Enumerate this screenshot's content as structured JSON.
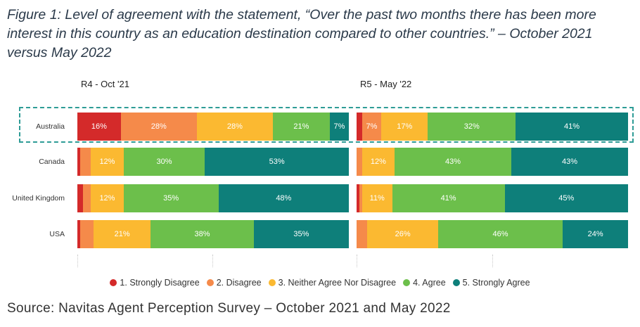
{
  "title": "Figure 1: Level of agreement with the statement, “Over the past two months there has been more interest in this country as an education destination compared to other countries.” – October 2021 versus May 2022",
  "source": "Source: Navitas Agent Perception Survey – October 2021 and May 2022",
  "chart_data": {
    "type": "bar",
    "orientation": "horizontal",
    "stacked": "100%",
    "categories": [
      "Australia",
      "Canada",
      "United Kingdom",
      "USA"
    ],
    "highlighted_category": "Australia",
    "panels": [
      {
        "title": "R4 - Oct '21",
        "series": [
          {
            "name": "1. Strongly Disagree",
            "values": [
              16,
              1,
              2,
              1
            ]
          },
          {
            "name": "2. Disagree",
            "values": [
              28,
              4,
              3,
              5
            ]
          },
          {
            "name": "3. Neither Agree Nor Disagree",
            "values": [
              28,
              12,
              12,
              21
            ]
          },
          {
            "name": "4. Agree",
            "values": [
              21,
              30,
              35,
              38
            ]
          },
          {
            "name": "5. Strongly Agree",
            "values": [
              7,
              53,
              48,
              35
            ]
          }
        ]
      },
      {
        "title": "R5 - May '22",
        "series": [
          {
            "name": "1. Strongly Disagree",
            "values": [
              2,
              0,
              1,
              0
            ]
          },
          {
            "name": "2. Disagree",
            "values": [
              7,
              2,
              1,
              4
            ]
          },
          {
            "name": "3. Neither Agree Nor Disagree",
            "values": [
              17,
              12,
              11,
              26
            ]
          },
          {
            "name": "4. Agree",
            "values": [
              32,
              43,
              41,
              46
            ]
          },
          {
            "name": "5. Strongly Agree",
            "values": [
              41,
              43,
              45,
              24
            ]
          }
        ]
      }
    ],
    "label_threshold": 5,
    "colors": [
      "#d42a2a",
      "#f58a4a",
      "#fbb931",
      "#6cbf4b",
      "#0e7f7a"
    ],
    "legend": [
      "1. Strongly Disagree",
      "2. Disagree",
      "3. Neither Agree Nor Disagree",
      "4. Agree",
      "5. Strongly Agree"
    ],
    "legend_position": "bottom"
  }
}
